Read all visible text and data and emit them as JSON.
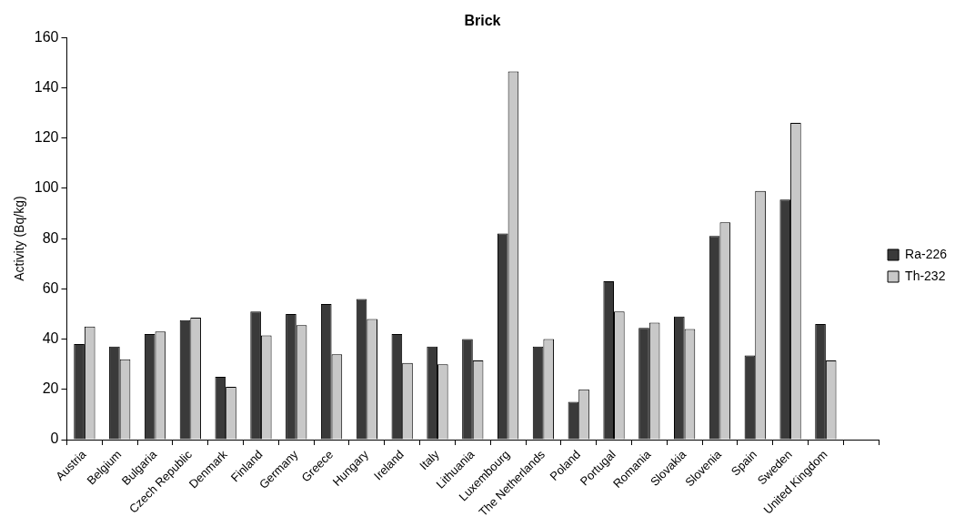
{
  "chart_data": {
    "type": "bar",
    "title": "Brick",
    "ylabel": "Activity (Bq/kg)",
    "categories": [
      "Austria",
      "Belgium",
      "Bulgaria",
      "Czech Republic",
      "Denmark",
      "Finland",
      "Germany",
      "Greece",
      "Hungary",
      "Ireland",
      "Italy",
      "Lithuania",
      "Luxembourg",
      "The Netherlands",
      "Poland",
      "Portugal",
      "Romania",
      "Slovakia",
      "Slovenia",
      "Spain",
      "Sweden",
      "United Kingdom",
      null
    ],
    "series": [
      {
        "name": "Ra-226",
        "color": "#3a3a3a",
        "values": [
          38,
          37,
          42,
          47.5,
          25,
          51,
          50,
          54,
          56,
          42,
          37,
          40,
          82,
          37,
          15,
          63,
          44.5,
          49,
          81,
          33.5,
          95.5,
          46,
          null
        ]
      },
      {
        "name": "Th-232",
        "color": "#c8c8c8",
        "values": [
          45,
          32,
          43,
          48.5,
          21,
          41.5,
          45.5,
          34,
          48,
          30.5,
          30,
          31.5,
          146.5,
          40,
          20,
          51,
          46.5,
          44,
          86.5,
          99,
          126,
          31.5,
          null
        ]
      }
    ],
    "ylim": [
      0,
      160
    ],
    "yticks": [
      0,
      20,
      40,
      60,
      80,
      100,
      120,
      140,
      160
    ],
    "grid": false,
    "legend": "right"
  }
}
